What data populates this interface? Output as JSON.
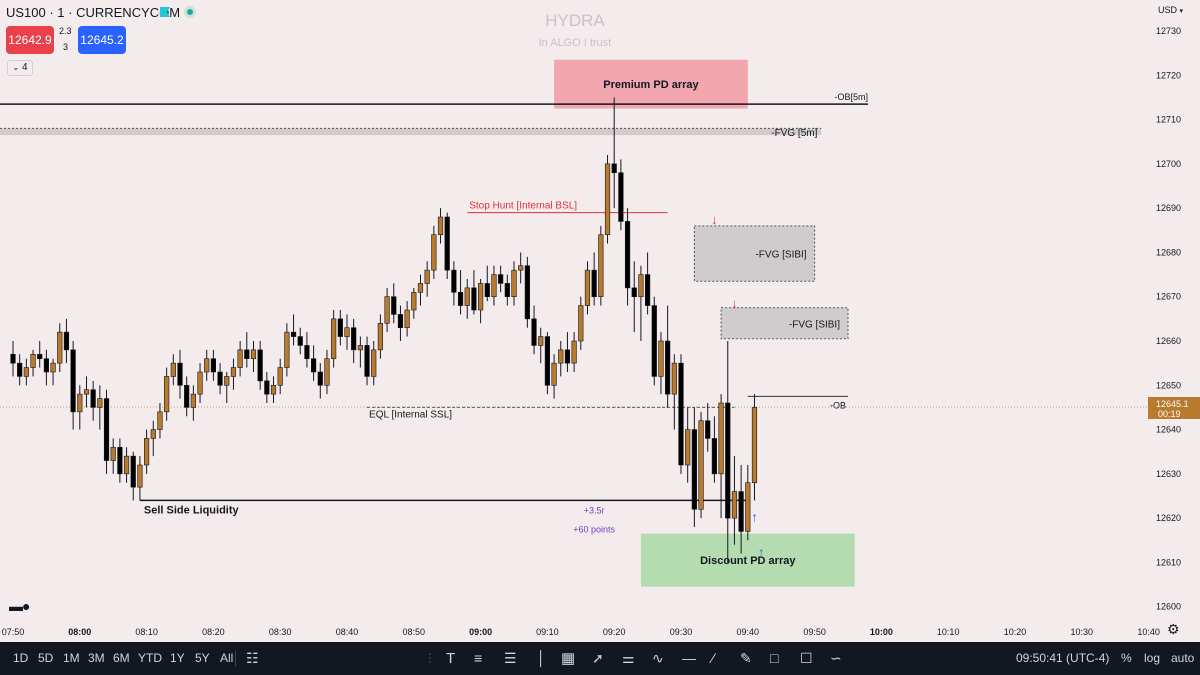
{
  "header": {
    "symbol": "US100 · 1 · CURRENCYCOM",
    "sell_price": "12642.9",
    "spread_top": "2.3",
    "spread_bottom": "3",
    "buy_price": "12645.2",
    "indicators_count": "4",
    "currency": "USD"
  },
  "watermark": {
    "title": "HYDRA",
    "subtitle": "In ALGO I trust"
  },
  "colors": {
    "up": "#b87a2c",
    "down": "#000000",
    "sell": "#e8414c",
    "buy": "#2962ff",
    "premium": "#f2a6ae",
    "discount": "#b5dcb0",
    "fvg": "#cfcfcf",
    "hunt": "#e0303d",
    "stats": "#6a3db8"
  },
  "chart_data": {
    "type": "candlestick",
    "symbol": "US100",
    "interval": "1",
    "ylim": [
      12597,
      12737
    ],
    "y_ticks": [
      12600,
      12610,
      12620,
      12630,
      12640,
      12650,
      12660,
      12670,
      12680,
      12690,
      12700,
      12710,
      12720,
      12730
    ],
    "x_ticks": [
      "07:50",
      "08:00",
      "08:10",
      "08:20",
      "08:30",
      "08:40",
      "08:50",
      "09:00",
      "09:10",
      "09:20",
      "09:30",
      "09:40",
      "09:50",
      "10:00",
      "10:10",
      "10:20",
      "10:30",
      "10:40"
    ],
    "x_tick_bold": [
      "08:00",
      "09:00",
      "10:00"
    ],
    "x_start": "07:50",
    "candle_minutes": 1,
    "last_price": "12645.1",
    "countdown": "00:19",
    "candles": [
      [
        12657,
        12660,
        12652,
        12655
      ],
      [
        12655,
        12657,
        12650,
        12652
      ],
      [
        12652,
        12656,
        12650,
        12654
      ],
      [
        12654,
        12658,
        12652,
        12657
      ],
      [
        12657,
        12660,
        12654,
        12656
      ],
      [
        12656,
        12658,
        12650,
        12653
      ],
      [
        12653,
        12656,
        12650,
        12655
      ],
      [
        12655,
        12664,
        12653,
        12662
      ],
      [
        12662,
        12665,
        12655,
        12658
      ],
      [
        12658,
        12660,
        12640,
        12644
      ],
      [
        12644,
        12650,
        12640,
        12648
      ],
      [
        12648,
        12652,
        12645,
        12649
      ],
      [
        12649,
        12651,
        12642,
        12645
      ],
      [
        12645,
        12650,
        12640,
        12647
      ],
      [
        12647,
        12649,
        12630,
        12633
      ],
      [
        12633,
        12638,
        12630,
        12636
      ],
      [
        12636,
        12638,
        12628,
        12630
      ],
      [
        12630,
        12636,
        12628,
        12634
      ],
      [
        12634,
        12635,
        12624,
        12627
      ],
      [
        12627,
        12634,
        12624,
        12632
      ],
      [
        12632,
        12640,
        12630,
        12638
      ],
      [
        12638,
        12642,
        12634,
        12640
      ],
      [
        12640,
        12646,
        12638,
        12644
      ],
      [
        12644,
        12654,
        12642,
        12652
      ],
      [
        12652,
        12657,
        12650,
        12655
      ],
      [
        12655,
        12658,
        12647,
        12650
      ],
      [
        12650,
        12652,
        12643,
        12645
      ],
      [
        12645,
        12650,
        12642,
        12648
      ],
      [
        12648,
        12655,
        12646,
        12653
      ],
      [
        12653,
        12658,
        12651,
        12656
      ],
      [
        12656,
        12658,
        12651,
        12653
      ],
      [
        12653,
        12655,
        12648,
        12650
      ],
      [
        12650,
        12653,
        12646,
        12652
      ],
      [
        12652,
        12656,
        12649,
        12654
      ],
      [
        12654,
        12660,
        12652,
        12658
      ],
      [
        12658,
        12662,
        12654,
        12656
      ],
      [
        12656,
        12660,
        12653,
        12658
      ],
      [
        12658,
        12660,
        12649,
        12651
      ],
      [
        12651,
        12653,
        12646,
        12648
      ],
      [
        12648,
        12652,
        12646,
        12650
      ],
      [
        12650,
        12656,
        12648,
        12654
      ],
      [
        12654,
        12664,
        12652,
        12662
      ],
      [
        12662,
        12666,
        12659,
        12661
      ],
      [
        12661,
        12663,
        12657,
        12659
      ],
      [
        12659,
        12662,
        12654,
        12656
      ],
      [
        12656,
        12659,
        12651,
        12653
      ],
      [
        12653,
        12655,
        12647,
        12650
      ],
      [
        12650,
        12658,
        12648,
        12656
      ],
      [
        12656,
        12667,
        12654,
        12665
      ],
      [
        12665,
        12667,
        12659,
        12661
      ],
      [
        12661,
        12666,
        12658,
        12663
      ],
      [
        12663,
        12665,
        12655,
        12658
      ],
      [
        12658,
        12661,
        12654,
        12659
      ],
      [
        12659,
        12661,
        12650,
        12652
      ],
      [
        12652,
        12660,
        12650,
        12658
      ],
      [
        12658,
        12666,
        12656,
        12664
      ],
      [
        12664,
        12672,
        12662,
        12670
      ],
      [
        12670,
        12673,
        12664,
        12666
      ],
      [
        12666,
        12668,
        12660,
        12663
      ],
      [
        12663,
        12669,
        12661,
        12667
      ],
      [
        12667,
        12672,
        12665,
        12671
      ],
      [
        12671,
        12675,
        12668,
        12673
      ],
      [
        12673,
        12678,
        12670,
        12676
      ],
      [
        12676,
        12686,
        12674,
        12684
      ],
      [
        12684,
        12690,
        12682,
        12688
      ],
      [
        12688,
        12689,
        12674,
        12676
      ],
      [
        12676,
        12678,
        12668,
        12671
      ],
      [
        12671,
        12676,
        12666,
        12668
      ],
      [
        12668,
        12674,
        12665,
        12672
      ],
      [
        12672,
        12676,
        12666,
        12667
      ],
      [
        12667,
        12674,
        12664,
        12673
      ],
      [
        12673,
        12677,
        12669,
        12670
      ],
      [
        12670,
        12677,
        12668,
        12675
      ],
      [
        12675,
        12677,
        12671,
        12673
      ],
      [
        12673,
        12675,
        12668,
        12670
      ],
      [
        12670,
        12678,
        12668,
        12676
      ],
      [
        12676,
        12680,
        12673,
        12677
      ],
      [
        12677,
        12679,
        12663,
        12665
      ],
      [
        12665,
        12668,
        12657,
        12659
      ],
      [
        12659,
        12663,
        12655,
        12661
      ],
      [
        12661,
        12662,
        12648,
        12650
      ],
      [
        12650,
        12657,
        12647,
        12655
      ],
      [
        12655,
        12660,
        12652,
        12658
      ],
      [
        12658,
        12662,
        12653,
        12655
      ],
      [
        12655,
        12662,
        12653,
        12660
      ],
      [
        12660,
        12670,
        12658,
        12668
      ],
      [
        12668,
        12678,
        12666,
        12676
      ],
      [
        12676,
        12680,
        12668,
        12670
      ],
      [
        12670,
        12686,
        12668,
        12684
      ],
      [
        12684,
        12702,
        12682,
        12700
      ],
      [
        12700,
        12715,
        12690,
        12698
      ],
      [
        12698,
        12701,
        12685,
        12687
      ],
      [
        12687,
        12690,
        12668,
        12672
      ],
      [
        12672,
        12678,
        12662,
        12670
      ],
      [
        12670,
        12677,
        12660,
        12675
      ],
      [
        12675,
        12680,
        12666,
        12668
      ],
      [
        12668,
        12670,
        12650,
        12652
      ],
      [
        12652,
        12662,
        12648,
        12660
      ],
      [
        12660,
        12668,
        12645,
        12648
      ],
      [
        12648,
        12657,
        12640,
        12655
      ],
      [
        12655,
        12657,
        12630,
        12632
      ],
      [
        12632,
        12645,
        12628,
        12640
      ],
      [
        12640,
        12645,
        12618,
        12622
      ],
      [
        12622,
        12644,
        12620,
        12642
      ],
      [
        12642,
        12646,
        12635,
        12638
      ],
      [
        12638,
        12643,
        12628,
        12630
      ],
      [
        12630,
        12648,
        12620,
        12646
      ],
      [
        12646,
        12660,
        12610,
        12620
      ],
      [
        12620,
        12634,
        12614,
        12626
      ],
      [
        12626,
        12632,
        12612,
        12617
      ],
      [
        12617,
        12632,
        12615,
        12628
      ],
      [
        12628,
        12648,
        12624,
        12645
      ]
    ],
    "zones": [
      {
        "label": "Premium PD array",
        "top": 12723.5,
        "bottom": 12712.5,
        "start": 81,
        "end": 110,
        "style": "premium"
      },
      {
        "label": "-FVG [5m]",
        "top": 12708,
        "bottom": 12706.5,
        "start": -15,
        "end": 121,
        "style": "fvg5"
      },
      {
        "label": "-FVG [SIBI]",
        "top": 12686,
        "bottom": 12673.5,
        "start": 102,
        "end": 120,
        "style": "fvg"
      },
      {
        "label": "-FVG [SIBI]",
        "top": 12667.5,
        "bottom": 12660.5,
        "start": 106,
        "end": 125,
        "style": "fvg"
      },
      {
        "label": "Discount PD array",
        "top": 12616.5,
        "bottom": 12604.5,
        "start": 94,
        "end": 126,
        "style": "discount"
      }
    ],
    "lines": [
      {
        "label": "-OB[5m]",
        "price": 12713.5,
        "start": -15,
        "end": 128,
        "style": "solid-black",
        "label_side": "end"
      },
      {
        "label": "-OB",
        "price": 12647.5,
        "start": 110,
        "end": 125,
        "style": "thin-black",
        "label_side": "end-below"
      },
      {
        "label": "Stop Hunt [Internal BSL]",
        "price": 12689,
        "start": 68,
        "end": 98,
        "style": "red"
      },
      {
        "label": "EQL [Internal SSL]",
        "price": 12645,
        "start": 53,
        "end": 108,
        "style": "dashed"
      },
      {
        "label": "Sell Side Liquidity",
        "price": 12624,
        "start": 19,
        "end": 110,
        "style": "solid-black",
        "label_side": "below"
      }
    ],
    "stats": {
      "rr": "+3.5r",
      "points": "+60 points"
    },
    "arrows": [
      {
        "dir": "down",
        "idx": 105,
        "price": 12686,
        "color": "#e0303d"
      },
      {
        "dir": "down",
        "idx": 108,
        "price": 12667,
        "color": "#e0303d"
      },
      {
        "dir": "up",
        "idx": 111,
        "price": 12622,
        "color": "#2962ff"
      },
      {
        "dir": "up",
        "idx": 112,
        "price": 12614,
        "color": "#2962ff"
      }
    ]
  },
  "bottom_toolbar": {
    "timeframes": [
      "1D",
      "5D",
      "1M",
      "3M",
      "6M",
      "YTD",
      "1Y",
      "5Y",
      "All"
    ],
    "clock": "09:50:41 (UTC-4)",
    "right": [
      "%",
      "log",
      "auto"
    ]
  }
}
